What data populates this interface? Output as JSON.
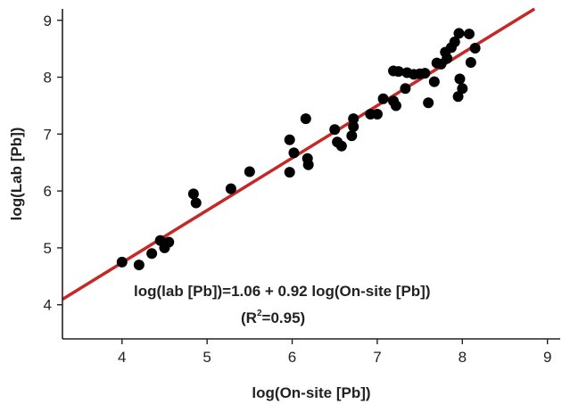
{
  "chart_data": {
    "type": "scatter",
    "xlabel": "log(On-site [Pb])",
    "ylabel": "log(Lab [Pb])",
    "xlim": [
      3.3,
      9.15
    ],
    "ylim": [
      3.4,
      9.2
    ],
    "xticks": [
      4,
      5,
      6,
      7,
      8,
      9
    ],
    "yticks": [
      4,
      5,
      6,
      7,
      8,
      9
    ],
    "grid": false,
    "points": [
      {
        "x": 4.0,
        "y": 4.75
      },
      {
        "x": 4.2,
        "y": 4.7
      },
      {
        "x": 4.35,
        "y": 4.9
      },
      {
        "x": 4.45,
        "y": 5.13
      },
      {
        "x": 4.5,
        "y": 5.0
      },
      {
        "x": 4.55,
        "y": 5.1
      },
      {
        "x": 4.84,
        "y": 5.95
      },
      {
        "x": 4.87,
        "y": 5.79
      },
      {
        "x": 5.28,
        "y": 6.04
      },
      {
        "x": 5.5,
        "y": 6.34
      },
      {
        "x": 5.97,
        "y": 6.9
      },
      {
        "x": 5.97,
        "y": 6.33
      },
      {
        "x": 6.02,
        "y": 6.67
      },
      {
        "x": 6.16,
        "y": 7.27
      },
      {
        "x": 6.18,
        "y": 6.57
      },
      {
        "x": 6.19,
        "y": 6.46
      },
      {
        "x": 6.5,
        "y": 7.08
      },
      {
        "x": 6.53,
        "y": 6.86
      },
      {
        "x": 6.58,
        "y": 6.79
      },
      {
        "x": 6.7,
        "y": 6.97
      },
      {
        "x": 6.72,
        "y": 7.13
      },
      {
        "x": 6.72,
        "y": 7.27
      },
      {
        "x": 6.92,
        "y": 7.35
      },
      {
        "x": 7.0,
        "y": 7.35
      },
      {
        "x": 7.07,
        "y": 7.62
      },
      {
        "x": 7.19,
        "y": 7.58
      },
      {
        "x": 7.22,
        "y": 7.5
      },
      {
        "x": 7.19,
        "y": 8.11
      },
      {
        "x": 7.25,
        "y": 8.1
      },
      {
        "x": 7.33,
        "y": 7.8
      },
      {
        "x": 7.43,
        "y": 8.05
      },
      {
        "x": 7.5,
        "y": 8.06
      },
      {
        "x": 7.56,
        "y": 8.07
      },
      {
        "x": 7.6,
        "y": 7.55
      },
      {
        "x": 7.67,
        "y": 7.92
      },
      {
        "x": 7.7,
        "y": 8.25
      },
      {
        "x": 7.75,
        "y": 8.23
      },
      {
        "x": 7.8,
        "y": 8.44
      },
      {
        "x": 7.87,
        "y": 8.52
      },
      {
        "x": 7.91,
        "y": 8.62
      },
      {
        "x": 7.96,
        "y": 8.77
      },
      {
        "x": 7.95,
        "y": 7.66
      },
      {
        "x": 7.97,
        "y": 7.97
      },
      {
        "x": 8.0,
        "y": 7.8
      },
      {
        "x": 8.08,
        "y": 8.76
      },
      {
        "x": 8.1,
        "y": 8.26
      },
      {
        "x": 8.15,
        "y": 8.51
      },
      {
        "x": 7.82,
        "y": 8.33
      },
      {
        "x": 7.35,
        "y": 8.08
      }
    ],
    "fit_line": {
      "intercept": 1.06,
      "slope": 0.92,
      "color": "#c62828"
    },
    "point_color": "#000000",
    "annotation": {
      "equation": "log(lab [Pb])=1.06 + 0.92 log(On-site [Pb])",
      "r2_open": "(R",
      "r2_sup": "2",
      "r2_close": "=0.95)"
    }
  }
}
